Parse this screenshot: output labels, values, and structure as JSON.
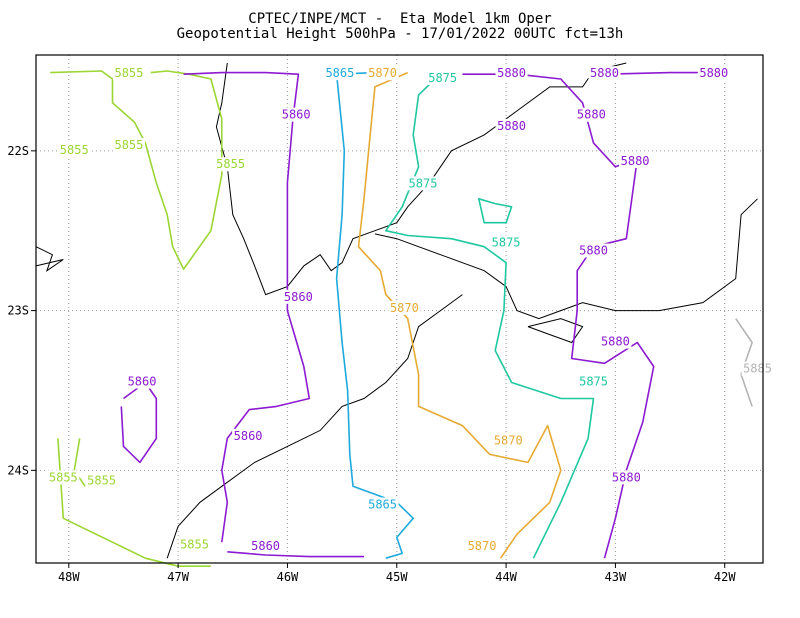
{
  "header": {
    "line1": "CPTEC/INPE/MCT -  Eta Model 1km Oper",
    "line2": "Geopotential Height 500hPa - 17/01/2022 00UTC fct=13h"
  },
  "chart_data": {
    "type": "contour",
    "title": "CPTEC/INPE/MCT -  Eta Model 1km Oper",
    "subtitle": "Geopotential Height 500hPa - 17/01/2022 00UTC fct=13h",
    "xlabel": "",
    "ylabel": "",
    "xlim": [
      -48.3,
      -41.65
    ],
    "ylim": [
      -24.58,
      -21.4
    ],
    "x_ticks": [
      {
        "value": -48,
        "label": "48W"
      },
      {
        "value": -47,
        "label": "47W"
      },
      {
        "value": -46,
        "label": "46W"
      },
      {
        "value": -45,
        "label": "45W"
      },
      {
        "value": -44,
        "label": "44W"
      },
      {
        "value": -43,
        "label": "43W"
      },
      {
        "value": -42,
        "label": "42W"
      }
    ],
    "y_ticks": [
      {
        "value": -22,
        "label": "22S"
      },
      {
        "value": -23,
        "label": "23S"
      },
      {
        "value": -24,
        "label": "24S"
      }
    ],
    "grid": true,
    "levels": [
      {
        "level": 5855,
        "color": "#9bd633",
        "lines": [
          [
            [
              -48.17,
              -21.51
            ],
            [
              -47.7,
              -21.5
            ],
            [
              -47.6,
              -21.55
            ],
            [
              -47.6,
              -21.7
            ],
            [
              -47.4,
              -21.82
            ],
            [
              -47.3,
              -21.95
            ],
            [
              -47.2,
              -22.2
            ],
            [
              -47.1,
              -22.4
            ],
            [
              -47.05,
              -22.6
            ],
            [
              -46.95,
              -22.74
            ],
            [
              -46.7,
              -22.5
            ],
            [
              -46.6,
              -22.15
            ],
            [
              -46.6,
              -21.8
            ],
            [
              -46.7,
              -21.55
            ],
            [
              -46.9,
              -21.52
            ],
            [
              -47.1,
              -21.5
            ],
            [
              -47.25,
              -21.51
            ]
          ],
          [
            [
              -48.1,
              -23.8
            ],
            [
              -48.05,
              -24.3
            ],
            [
              -47.9,
              -24.35
            ],
            [
              -47.6,
              -24.45
            ],
            [
              -47.3,
              -24.55
            ],
            [
              -47.0,
              -24.6
            ],
            [
              -46.7,
              -24.6
            ]
          ],
          [
            [
              -47.9,
              -23.8
            ],
            [
              -47.95,
              -24.0
            ],
            [
              -47.85,
              -24.1
            ]
          ]
        ],
        "labels": [
          {
            "x": -47.45,
            "y": -21.52,
            "text": "5855"
          },
          {
            "x": -47.95,
            "y": -22.0,
            "text": "5855"
          },
          {
            "x": -47.45,
            "y": -21.97,
            "text": "5855"
          },
          {
            "x": -46.52,
            "y": -22.09,
            "text": "5855"
          },
          {
            "x": -48.05,
            "y": -24.05,
            "text": "5855"
          },
          {
            "x": -47.7,
            "y": -24.07,
            "text": "5855"
          },
          {
            "x": -46.85,
            "y": -24.47,
            "text": "5855"
          }
        ]
      },
      {
        "level": 5860,
        "color": "#8c1ad1",
        "lines": [
          [
            [
              -46.95,
              -21.52
            ],
            [
              -46.6,
              -21.51
            ],
            [
              -46.2,
              -21.51
            ],
            [
              -45.9,
              -21.52
            ],
            [
              -45.95,
              -21.8
            ],
            [
              -46.0,
              -22.2
            ],
            [
              -46.0,
              -22.6
            ],
            [
              -46.0,
              -23.0
            ],
            [
              -45.85,
              -23.35
            ],
            [
              -45.8,
              -23.55
            ],
            [
              -46.1,
              -23.6
            ],
            [
              -46.35,
              -23.62
            ],
            [
              -46.55,
              -23.8
            ],
            [
              -46.6,
              -24.0
            ],
            [
              -46.55,
              -24.2
            ],
            [
              -46.6,
              -24.45
            ]
          ],
          [
            [
              -47.5,
              -23.55
            ],
            [
              -47.3,
              -23.45
            ],
            [
              -47.2,
              -23.55
            ],
            [
              -47.2,
              -23.8
            ],
            [
              -47.35,
              -23.95
            ],
            [
              -47.5,
              -23.85
            ],
            [
              -47.52,
              -23.6
            ]
          ],
          [
            [
              -46.55,
              -24.51
            ],
            [
              -46.2,
              -24.53
            ],
            [
              -45.8,
              -24.54
            ],
            [
              -45.3,
              -24.54
            ]
          ]
        ],
        "labels": [
          {
            "x": -45.92,
            "y": -21.78,
            "text": "5860"
          },
          {
            "x": -45.9,
            "y": -22.92,
            "text": "5860"
          },
          {
            "x": -47.33,
            "y": -23.45,
            "text": "5860"
          },
          {
            "x": -46.36,
            "y": -23.79,
            "text": "5860"
          },
          {
            "x": -46.2,
            "y": -24.48,
            "text": "5860"
          }
        ]
      },
      {
        "level": 5865,
        "color": "#1eaadc",
        "lines": [
          [
            [
              -45.2,
              -21.51
            ],
            [
              -45.55,
              -21.52
            ],
            [
              -45.48,
              -22.0
            ],
            [
              -45.5,
              -22.4
            ],
            [
              -45.55,
              -22.8
            ],
            [
              -45.5,
              -23.2
            ],
            [
              -45.45,
              -23.5
            ],
            [
              -45.43,
              -23.9
            ],
            [
              -45.4,
              -24.1
            ],
            [
              -45.2,
              -24.15
            ],
            [
              -45.0,
              -24.2
            ],
            [
              -44.85,
              -24.3
            ],
            [
              -45.0,
              -24.42
            ],
            [
              -44.95,
              -24.52
            ],
            [
              -45.1,
              -24.55
            ]
          ]
        ],
        "labels": [
          {
            "x": -45.52,
            "y": -21.52,
            "text": "5865"
          },
          {
            "x": -45.13,
            "y": -24.22,
            "text": "5865"
          }
        ]
      },
      {
        "level": 5870,
        "color": "#e6aa32",
        "lines": [
          [
            [
              -44.9,
              -21.51
            ],
            [
              -45.2,
              -21.6
            ],
            [
              -45.25,
              -21.95
            ],
            [
              -45.3,
              -22.3
            ],
            [
              -45.35,
              -22.6
            ],
            [
              -45.15,
              -22.75
            ],
            [
              -45.1,
              -22.9
            ],
            [
              -44.9,
              -23.05
            ],
            [
              -44.8,
              -23.4
            ],
            [
              -44.8,
              -23.6
            ],
            [
              -44.4,
              -23.72
            ],
            [
              -44.15,
              -23.9
            ],
            [
              -43.8,
              -23.95
            ],
            [
              -43.62,
              -23.72
            ],
            [
              -43.5,
              -24.0
            ],
            [
              -43.6,
              -24.2
            ],
            [
              -43.9,
              -24.4
            ],
            [
              -44.05,
              -24.55
            ]
          ]
        ],
        "labels": [
          {
            "x": -45.13,
            "y": -21.52,
            "text": "5870"
          },
          {
            "x": -44.93,
            "y": -22.99,
            "text": "5870"
          },
          {
            "x": -43.98,
            "y": -23.82,
            "text": "5870"
          },
          {
            "x": -44.22,
            "y": -24.48,
            "text": "5870"
          }
        ]
      },
      {
        "level": 5875,
        "color": "#1ec8a0",
        "lines": [
          [
            [
              -44.65,
              -21.55
            ],
            [
              -44.8,
              -21.65
            ],
            [
              -44.85,
              -21.9
            ],
            [
              -44.8,
              -22.1
            ],
            [
              -44.95,
              -22.35
            ],
            [
              -45.1,
              -22.5
            ],
            [
              -44.9,
              -22.53
            ],
            [
              -44.5,
              -22.55
            ],
            [
              -44.2,
              -22.6
            ],
            [
              -44.0,
              -22.7
            ],
            [
              -44.02,
              -23.0
            ],
            [
              -44.1,
              -23.25
            ],
            [
              -43.95,
              -23.45
            ],
            [
              -43.5,
              -23.55
            ],
            [
              -43.2,
              -23.55
            ],
            [
              -43.25,
              -23.8
            ],
            [
              -43.5,
              -24.2
            ],
            [
              -43.75,
              -24.55
            ]
          ],
          [
            [
              -44.1,
              -22.33
            ],
            [
              -44.25,
              -22.3
            ],
            [
              -44.2,
              -22.45
            ],
            [
              -44.0,
              -22.45
            ],
            [
              -43.95,
              -22.35
            ],
            [
              -44.1,
              -22.33
            ]
          ]
        ],
        "labels": [
          {
            "x": -44.58,
            "y": -21.55,
            "text": "5875"
          },
          {
            "x": -44.76,
            "y": -22.21,
            "text": "5875"
          },
          {
            "x": -44.0,
            "y": -22.58,
            "text": "5875"
          },
          {
            "x": -43.2,
            "y": -23.45,
            "text": "5875"
          }
        ]
      },
      {
        "level": 5880,
        "color": "#8c1ad1",
        "lines": [
          [
            [
              -44.4,
              -21.52
            ],
            [
              -43.9,
              -21.52
            ],
            [
              -43.5,
              -21.55
            ],
            [
              -43.3,
              -21.7
            ],
            [
              -43.2,
              -21.95
            ],
            [
              -43.0,
              -22.1
            ],
            [
              -42.8,
              -22.05
            ],
            [
              -42.85,
              -22.3
            ],
            [
              -42.9,
              -22.55
            ],
            [
              -43.2,
              -22.6
            ],
            [
              -43.35,
              -22.75
            ],
            [
              -43.35,
              -23.0
            ],
            [
              -43.4,
              -23.3
            ],
            [
              -43.1,
              -23.33
            ],
            [
              -42.8,
              -23.2
            ],
            [
              -42.65,
              -23.35
            ],
            [
              -42.75,
              -23.7
            ],
            [
              -42.9,
              -24.0
            ],
            [
              -43.0,
              -24.3
            ],
            [
              -43.1,
              -24.55
            ]
          ],
          [
            [
              -43.1,
              -21.52
            ],
            [
              -42.5,
              -21.51
            ],
            [
              -42.1,
              -21.51
            ]
          ]
        ],
        "labels": [
          {
            "x": -43.95,
            "y": -21.52,
            "text": "5880"
          },
          {
            "x": -43.1,
            "y": -21.52,
            "text": "5880"
          },
          {
            "x": -42.1,
            "y": -21.52,
            "text": "5880"
          },
          {
            "x": -43.95,
            "y": -21.85,
            "text": "5880"
          },
          {
            "x": -43.22,
            "y": -21.78,
            "text": "5880"
          },
          {
            "x": -42.82,
            "y": -22.07,
            "text": "5880"
          },
          {
            "x": -43.2,
            "y": -22.63,
            "text": "5880"
          },
          {
            "x": -43.0,
            "y": -23.2,
            "text": "5880"
          },
          {
            "x": -42.9,
            "y": -24.05,
            "text": "5880"
          }
        ]
      },
      {
        "level": 5885,
        "color": "#b4b4b4",
        "lines": [
          [
            [
              -41.9,
              -23.05
            ],
            [
              -41.75,
              -23.2
            ],
            [
              -41.85,
              -23.4
            ],
            [
              -41.75,
              -23.6
            ]
          ]
        ],
        "labels": [
          {
            "x": -41.7,
            "y": -23.37,
            "text": "5885"
          }
        ]
      }
    ],
    "coastline": [
      [
        [
          -48.3,
          -22.6
        ],
        [
          -48.15,
          -22.65
        ],
        [
          -48.2,
          -22.75
        ],
        [
          -48.05,
          -22.68
        ],
        [
          -48.3,
          -22.72
        ]
      ],
      [
        [
          -46.55,
          -21.45
        ],
        [
          -46.6,
          -21.7
        ],
        [
          -46.65,
          -21.85
        ],
        [
          -46.55,
          -22.1
        ],
        [
          -46.5,
          -22.4
        ],
        [
          -46.4,
          -22.55
        ],
        [
          -46.3,
          -22.72
        ],
        [
          -46.2,
          -22.9
        ],
        [
          -46.0,
          -22.85
        ],
        [
          -45.85,
          -22.72
        ],
        [
          -45.7,
          -22.65
        ],
        [
          -45.6,
          -22.75
        ],
        [
          -45.5,
          -22.7
        ],
        [
          -45.4,
          -22.55
        ],
        [
          -45.2,
          -22.5
        ],
        [
          -45.0,
          -22.45
        ],
        [
          -44.9,
          -22.35
        ],
        [
          -44.7,
          -22.2
        ],
        [
          -44.5,
          -22.0
        ],
        [
          -44.2,
          -21.9
        ],
        [
          -43.9,
          -21.75
        ],
        [
          -43.6,
          -21.6
        ],
        [
          -43.3,
          -21.6
        ],
        [
          -43.2,
          -21.5
        ],
        [
          -42.9,
          -21.45
        ]
      ],
      [
        [
          -45.2,
          -22.52
        ],
        [
          -45.0,
          -22.55
        ],
        [
          -44.8,
          -22.6
        ],
        [
          -44.6,
          -22.65
        ],
        [
          -44.4,
          -22.7
        ],
        [
          -44.2,
          -22.75
        ],
        [
          -44.0,
          -22.85
        ],
        [
          -43.9,
          -23.0
        ],
        [
          -43.7,
          -23.05
        ],
        [
          -43.5,
          -23.0
        ],
        [
          -43.3,
          -22.95
        ],
        [
          -43.0,
          -23.0
        ],
        [
          -42.6,
          -23.0
        ],
        [
          -42.2,
          -22.95
        ],
        [
          -41.9,
          -22.8
        ],
        [
          -41.85,
          -22.4
        ],
        [
          -41.7,
          -22.3
        ]
      ],
      [
        [
          -44.4,
          -22.9
        ],
        [
          -44.6,
          -23.0
        ],
        [
          -44.8,
          -23.1
        ],
        [
          -44.9,
          -23.3
        ],
        [
          -45.1,
          -23.45
        ],
        [
          -45.3,
          -23.55
        ],
        [
          -45.5,
          -23.6
        ],
        [
          -45.7,
          -23.75
        ],
        [
          -46.0,
          -23.85
        ],
        [
          -46.3,
          -23.95
        ],
        [
          -46.6,
          -24.1
        ],
        [
          -46.8,
          -24.2
        ],
        [
          -47.0,
          -24.35
        ],
        [
          -47.1,
          -24.55
        ]
      ],
      [
        [
          -43.8,
          -23.1
        ],
        [
          -43.5,
          -23.05
        ],
        [
          -43.3,
          -23.1
        ],
        [
          -43.4,
          -23.2
        ],
        [
          -43.6,
          -23.15
        ],
        [
          -43.8,
          -23.1
        ]
      ]
    ]
  }
}
